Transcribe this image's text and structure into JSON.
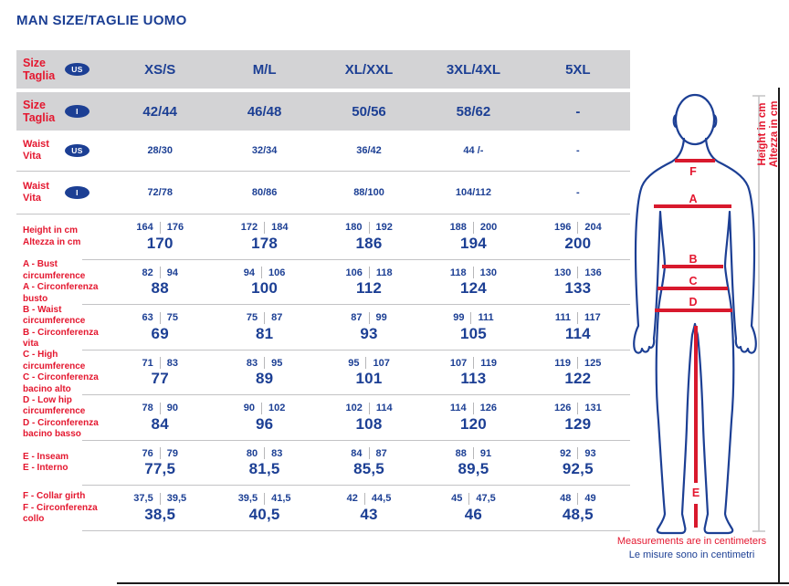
{
  "title": "MAN SIZE/TAGLIE UOMO",
  "colors": {
    "blue": "#1c3f94",
    "red": "#e4172f",
    "header_row_gray": "#d3d3d5",
    "separator_gray": "#c3c3c5",
    "measure_line_red": "#d8192d",
    "height_axis_gray": "#c6c6c8"
  },
  "table": {
    "header_rows": [
      {
        "label": "Size\nTaglia",
        "badge": "US",
        "cells": [
          "XS/S",
          "M/L",
          "XL/XXL",
          "3XL/4XL",
          "5XL"
        ]
      },
      {
        "label": "Size\nTaglia",
        "badge": "I",
        "cells": [
          "42/44",
          "46/48",
          "50/56",
          "58/62",
          "-"
        ]
      }
    ],
    "waist_rows": [
      {
        "label": "Waist\nVita",
        "badge": "US",
        "cells": [
          "28/30",
          "32/34",
          "36/42",
          "44 /-",
          "-"
        ]
      },
      {
        "label": "Waist\nVita",
        "badge": "I",
        "cells": [
          "72/78",
          "80/86",
          "88/100",
          "104/112",
          "-"
        ]
      }
    ],
    "measure_rows": [
      {
        "label": "Height in cm\nAltezza in cm",
        "cells": [
          {
            "range": [
              "164",
              "176"
            ],
            "value": "170"
          },
          {
            "range": [
              "172",
              "184"
            ],
            "value": "178"
          },
          {
            "range": [
              "180",
              "192"
            ],
            "value": "186"
          },
          {
            "range": [
              "188",
              "200"
            ],
            "value": "194"
          },
          {
            "range": [
              "196",
              "204"
            ],
            "value": "200"
          }
        ]
      },
      {
        "label": "A - Bust\ncircumference\nA - Circonferenza\nbusto",
        "cells": [
          {
            "range": [
              "82",
              "94"
            ],
            "value": "88"
          },
          {
            "range": [
              "94",
              "106"
            ],
            "value": "100"
          },
          {
            "range": [
              "106",
              "118"
            ],
            "value": "112"
          },
          {
            "range": [
              "118",
              "130"
            ],
            "value": "124"
          },
          {
            "range": [
              "130",
              "136"
            ],
            "value": "133"
          }
        ]
      },
      {
        "label": "B - Waist\ncircumference\nB - Circonferenza\nvita",
        "cells": [
          {
            "range": [
              "63",
              "75"
            ],
            "value": "69"
          },
          {
            "range": [
              "75",
              "87"
            ],
            "value": "81"
          },
          {
            "range": [
              "87",
              "99"
            ],
            "value": "93"
          },
          {
            "range": [
              "99",
              "111"
            ],
            "value": "105"
          },
          {
            "range": [
              "111",
              "117"
            ],
            "value": "114"
          }
        ]
      },
      {
        "label": "C - High\ncircumference\nC - Circonferenza\nbacino alto",
        "cells": [
          {
            "range": [
              "71",
              "83"
            ],
            "value": "77"
          },
          {
            "range": [
              "83",
              "95"
            ],
            "value": "89"
          },
          {
            "range": [
              "95",
              "107"
            ],
            "value": "101"
          },
          {
            "range": [
              "107",
              "119"
            ],
            "value": "113"
          },
          {
            "range": [
              "119",
              "125"
            ],
            "value": "122"
          }
        ]
      },
      {
        "label": "D - Low hip\ncircumference\nD - Circonferenza\nbacino basso",
        "cells": [
          {
            "range": [
              "78",
              "90"
            ],
            "value": "84"
          },
          {
            "range": [
              "90",
              "102"
            ],
            "value": "96"
          },
          {
            "range": [
              "102",
              "114"
            ],
            "value": "108"
          },
          {
            "range": [
              "114",
              "126"
            ],
            "value": "120"
          },
          {
            "range": [
              "126",
              "131"
            ],
            "value": "129"
          }
        ]
      },
      {
        "label": "E - Inseam\nE - Interno",
        "cells": [
          {
            "range": [
              "76",
              "79"
            ],
            "value": "77,5"
          },
          {
            "range": [
              "80",
              "83"
            ],
            "value": "81,5"
          },
          {
            "range": [
              "84",
              "87"
            ],
            "value": "85,5"
          },
          {
            "range": [
              "88",
              "91"
            ],
            "value": "89,5"
          },
          {
            "range": [
              "92",
              "93"
            ],
            "value": "92,5"
          }
        ]
      },
      {
        "label": "F - Collar girth\nF - Circonferenza\ncollo",
        "cells": [
          {
            "range": [
              "37,5",
              "39,5"
            ],
            "value": "38,5"
          },
          {
            "range": [
              "39,5",
              "41,5"
            ],
            "value": "40,5"
          },
          {
            "range": [
              "42",
              "44,5"
            ],
            "value": "43"
          },
          {
            "range": [
              "45",
              "47,5"
            ],
            "value": "46"
          },
          {
            "range": [
              "48",
              "49"
            ],
            "value": "48,5"
          }
        ]
      }
    ]
  },
  "figure": {
    "labels": [
      "F",
      "A",
      "B",
      "C",
      "D",
      "E"
    ],
    "axis_label_en": "Height in cm",
    "axis_label_it": "Altezza in cm"
  },
  "footer": {
    "line_en": "Measurements are in centimeters",
    "line_it": "Le misure sono in centimetri"
  }
}
